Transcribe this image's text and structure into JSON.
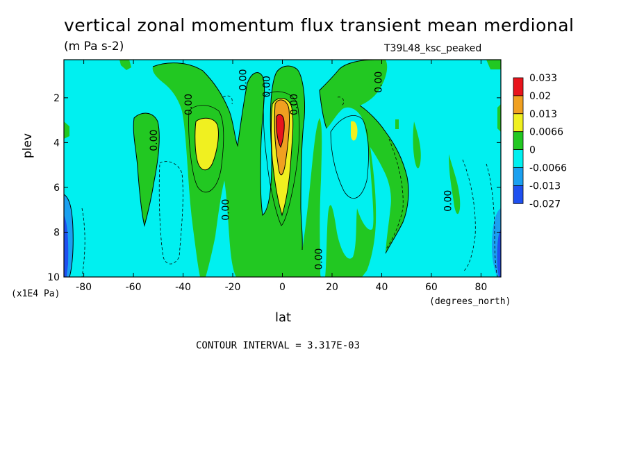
{
  "chart_data": {
    "type": "heatmap",
    "title": "vertical zonal momentum flux transient mean merdional",
    "subtitle": "(m Pa s-2)",
    "run_label": "T39L48_ksc_peaked",
    "xlabel": "lat",
    "x_units": "(degrees_north)",
    "ylabel": "plev",
    "y_units": "(x1E4 Pa)",
    "footnote": "CONTOUR INTERVAL = 3.317E-03",
    "xlim": [
      -88,
      88
    ],
    "ylim": [
      10,
      0.3
    ],
    "x_ticks": [
      -80,
      -60,
      -40,
      -20,
      0,
      20,
      40,
      60,
      80
    ],
    "y_ticks": [
      2,
      4,
      6,
      8,
      10
    ],
    "x_tick_labels": [
      "-80",
      "-60",
      "-40",
      "-20",
      "0",
      "20",
      "40",
      "60",
      "80"
    ],
    "y_tick_labels": [
      "2",
      "4",
      "6",
      "8",
      "10"
    ],
    "legend": [
      {
        "label": "0.033",
        "color": "#e8141c"
      },
      {
        "label": "0.02",
        "color": "#f0a020"
      },
      {
        "label": "0.013",
        "color": "#f0f020"
      },
      {
        "label": "0.0066",
        "color": "#22c822"
      },
      {
        "label": "0",
        "color": "#00f0f0"
      },
      {
        "label": "-0.0066",
        "color": "#1aa0f0"
      },
      {
        "label": "-0.013",
        "color": "#1e50f0"
      },
      {
        "label": "-0.027",
        "color": ""
      }
    ],
    "contour_labels": [
      {
        "text": "0.00",
        "lat": -50.5,
        "plev": 3.9,
        "rot": -90
      },
      {
        "text": "0.00",
        "lat": -36.5,
        "plev": 2.3,
        "rot": -90
      },
      {
        "text": "0.00",
        "lat": -21.5,
        "plev": 7.0,
        "rot": -90
      },
      {
        "text": "0.00",
        "lat": -14.5,
        "plev": 1.2,
        "rot": -90
      },
      {
        "text": "0.00",
        "lat": -5.0,
        "plev": 1.5,
        "rot": -90
      },
      {
        "text": "0.00",
        "lat": 6.0,
        "plev": 2.3,
        "rot": -90
      },
      {
        "text": "0.00",
        "lat": 16.0,
        "plev": 9.2,
        "rot": -90
      },
      {
        "text": "0.00",
        "lat": 40.0,
        "plev": 1.3,
        "rot": -90
      },
      {
        "text": "0.00",
        "lat": 68.0,
        "plev": 6.6,
        "rot": -90
      }
    ]
  }
}
